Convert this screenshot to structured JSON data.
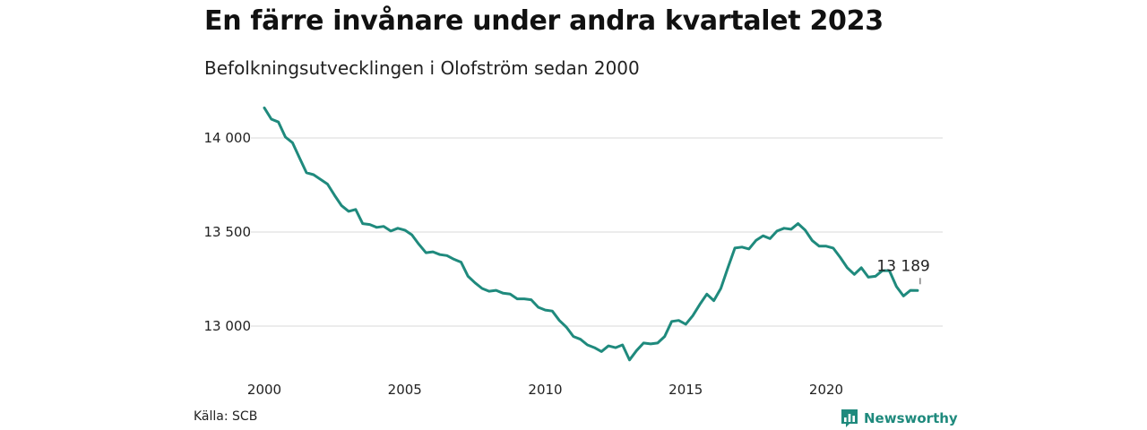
{
  "header": {
    "title": "En färre invånare under andra kvartalet 2023",
    "subtitle": "Befolkningsutvecklingen i Olofström sedan 2000"
  },
  "footer": {
    "source": "Källa: SCB",
    "brand": "Newsworthy",
    "brand_icon": "bar-chart-speech-bubble-icon"
  },
  "chart_data": {
    "type": "line",
    "title": "En färre invånare under andra kvartalet 2023",
    "subtitle": "Befolkningsutvecklingen i Olofström sedan 2000",
    "xlabel": "",
    "ylabel": "",
    "xlim": [
      2000,
      2023.5
    ],
    "ylim": [
      12780,
      14200
    ],
    "x_ticks": [
      2000,
      2005,
      2010,
      2015,
      2020
    ],
    "x_tick_labels": [
      "2000",
      "2005",
      "2010",
      "2015",
      "2020"
    ],
    "y_ticks": [
      13000,
      13500,
      14000
    ],
    "y_tick_labels": [
      "13 000",
      "13 500",
      "14 000"
    ],
    "grid": "horizontal",
    "color": "#1f8a7d",
    "annotation": {
      "label": "13 189",
      "x": 2023.25,
      "y": 13189
    },
    "series": [
      {
        "x": [
          2000.0,
          2000.25,
          2000.5,
          2000.75,
          2001.0,
          2001.25,
          2001.5,
          2001.75,
          2002.0,
          2002.25,
          2002.5,
          2002.75,
          2003.0,
          2003.25,
          2003.5,
          2003.75,
          2004.0,
          2004.25,
          2004.5,
          2004.75,
          2005.0,
          2005.25,
          2005.5,
          2005.75,
          2006.0,
          2006.25,
          2006.5,
          2006.75,
          2007.0,
          2007.25,
          2007.5,
          2007.75,
          2008.0,
          2008.25,
          2008.5,
          2008.75,
          2009.0,
          2009.25,
          2009.5,
          2009.75,
          2010.0,
          2010.25,
          2010.5,
          2010.75,
          2011.0,
          2011.25,
          2011.5,
          2011.75,
          2012.0,
          2012.25,
          2012.5,
          2012.75,
          2013.0,
          2013.25,
          2013.5,
          2013.75,
          2014.0,
          2014.25,
          2014.5,
          2014.75,
          2015.0,
          2015.25,
          2015.5,
          2015.75,
          2016.0,
          2016.25,
          2016.5,
          2016.75,
          2017.0,
          2017.25,
          2017.5,
          2017.75,
          2018.0,
          2018.25,
          2018.5,
          2018.75,
          2019.0,
          2019.25,
          2019.5,
          2019.75,
          2020.0,
          2020.25,
          2020.5,
          2020.75,
          2021.0,
          2021.25,
          2021.5,
          2021.75,
          2022.0,
          2022.25,
          2022.5,
          2022.75,
          2023.0,
          2023.25
        ],
        "values": [
          14160,
          14100,
          14085,
          14005,
          13975,
          13895,
          13815,
          13805,
          13780,
          13755,
          13695,
          13640,
          13610,
          13620,
          13545,
          13540,
          13525,
          13530,
          13505,
          13520,
          13510,
          13485,
          13435,
          13390,
          13395,
          13380,
          13375,
          13355,
          13340,
          13265,
          13230,
          13200,
          13185,
          13190,
          13175,
          13170,
          13145,
          13145,
          13140,
          13100,
          13085,
          13080,
          13030,
          12995,
          12945,
          12930,
          12900,
          12885,
          12865,
          12895,
          12885,
          12900,
          12820,
          12870,
          12910,
          12905,
          12910,
          12945,
          13025,
          13030,
          13010,
          13055,
          13115,
          13170,
          13135,
          13200,
          13310,
          13415,
          13420,
          13410,
          13455,
          13480,
          13465,
          13505,
          13520,
          13515,
          13545,
          13510,
          13455,
          13425,
          13425,
          13415,
          13365,
          13310,
          13275,
          13310,
          13260,
          13265,
          13295,
          13295,
          13210,
          13160,
          13190,
          13189
        ]
      }
    ]
  }
}
